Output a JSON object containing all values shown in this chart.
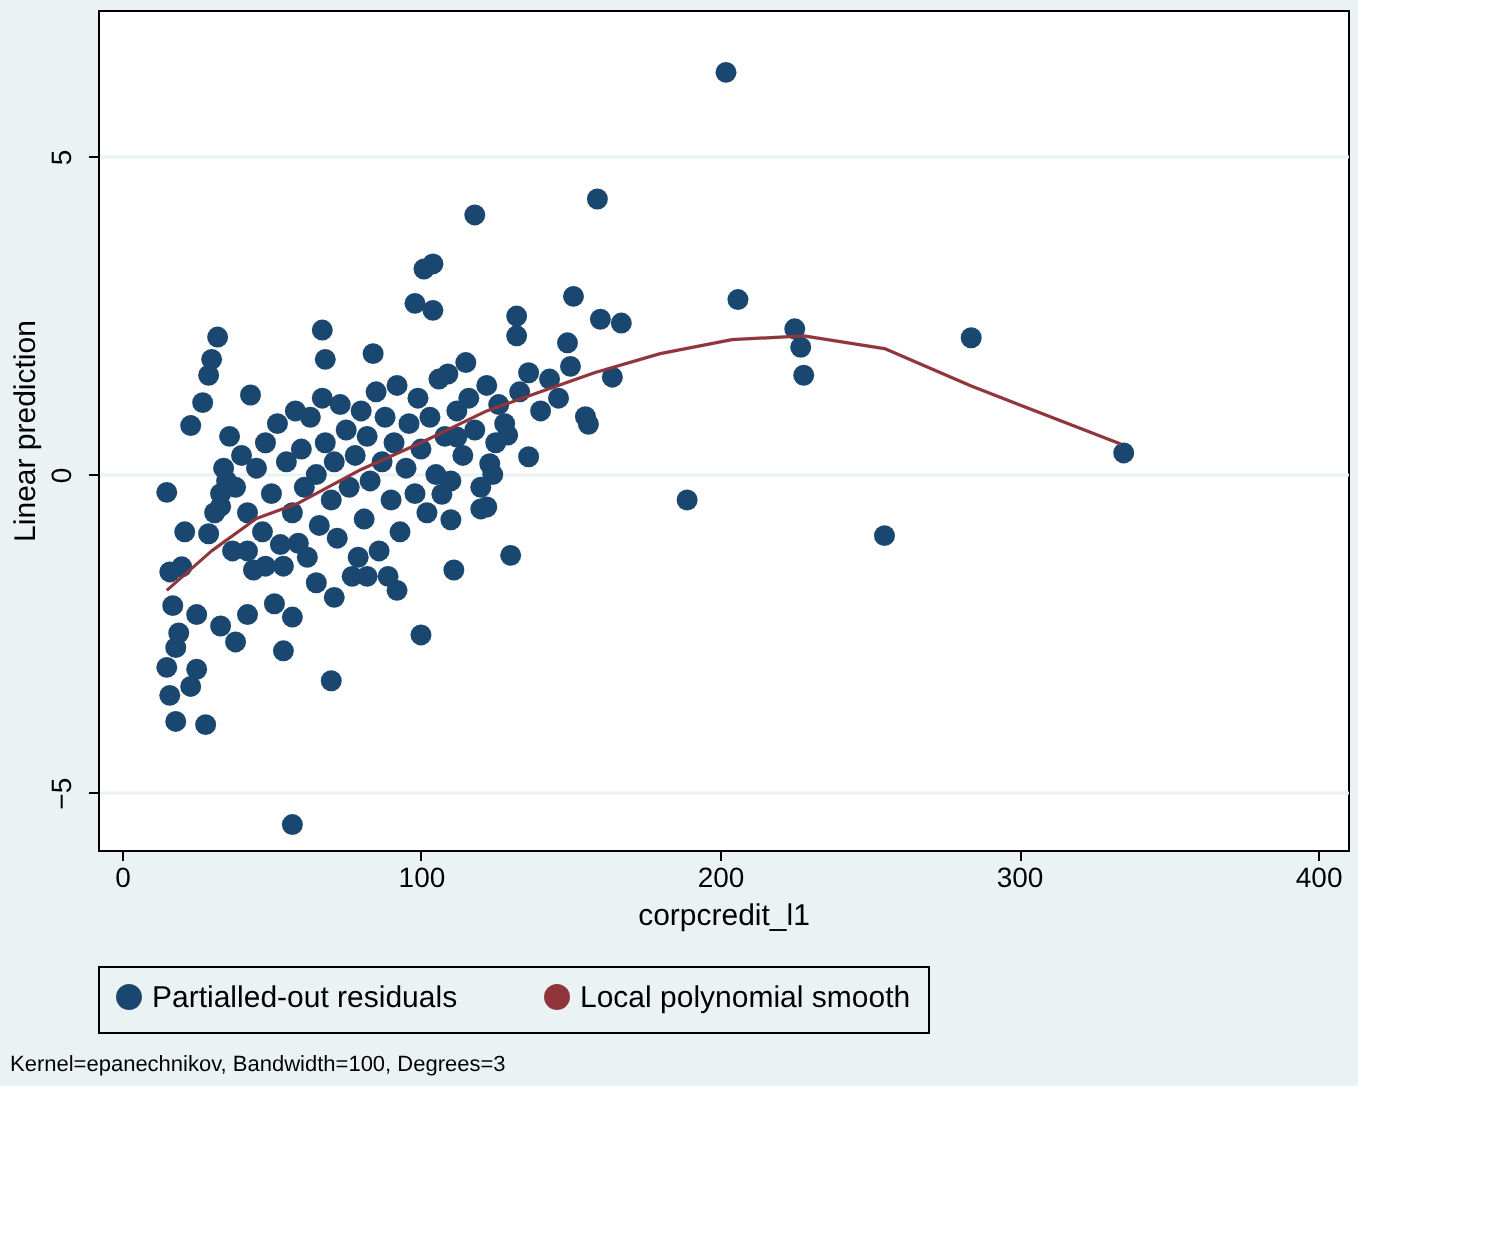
{
  "chart_data": {
    "type": "scatter",
    "xlabel": "corpcredit_l1",
    "ylabel": "Linear prediction",
    "annotations": [
      "Kernel=epanechnikov,  Bandwidth=100,  Degrees=3"
    ],
    "xlim": [
      -8,
      410
    ],
    "ylim": [
      -5.9,
      7.3
    ],
    "xticks": [
      0,
      100,
      200,
      300,
      400
    ],
    "yticks": [
      -5,
      0,
      5
    ],
    "grid": "y",
    "legend": "bottom",
    "series": [
      {
        "name": "Partialled-out residuals",
        "marker": "circle",
        "color": "#1a476f",
        "x": [
          118,
          101,
          104,
          98,
          104,
          67,
          32,
          30,
          29,
          27,
          23,
          15,
          21,
          16,
          20,
          17,
          25,
          19,
          18,
          15,
          25,
          16,
          23,
          18,
          28,
          57,
          70,
          54,
          33,
          38,
          42,
          51,
          57,
          100,
          92,
          111,
          110,
          107,
          115,
          109,
          84,
          68,
          43,
          112,
          120,
          82,
          71,
          59,
          48,
          54,
          37,
          42,
          29,
          31,
          33,
          34,
          202,
          159,
          151,
          206,
          132,
          132,
          160,
          167,
          149,
          225,
          227,
          228,
          284,
          335,
          164,
          155,
          156,
          189,
          255,
          130,
          122,
          136,
          123,
          124,
          129,
          38,
          40,
          42,
          45,
          47,
          48,
          50,
          52,
          53,
          55,
          57,
          58,
          60,
          61,
          62,
          63,
          65,
          66,
          67,
          68,
          70,
          71,
          72,
          73,
          75,
          76,
          77,
          78,
          80,
          81,
          82,
          83,
          85,
          86,
          87,
          88,
          90,
          91,
          92,
          93,
          95,
          96,
          98,
          99,
          100,
          102,
          103,
          105,
          106,
          108,
          110,
          112,
          114,
          116,
          118,
          120,
          122,
          126,
          128,
          133,
          136,
          140,
          143,
          146,
          150,
          125,
          35,
          33,
          36,
          44,
          65,
          79,
          89
        ],
        "values": [
          4.08,
          3.23,
          3.31,
          2.69,
          2.58,
          2.27,
          2.16,
          1.81,
          1.56,
          1.13,
          0.77,
          -0.28,
          -0.9,
          -1.53,
          -1.45,
          -2.06,
          -2.2,
          -2.49,
          -2.72,
          -3.03,
          -3.06,
          -3.47,
          -3.33,
          -3.88,
          -3.93,
          -5.5,
          -3.24,
          -2.77,
          -2.38,
          -2.63,
          -2.2,
          -2.03,
          -2.24,
          -2.52,
          -1.82,
          -1.5,
          -0.71,
          -0.31,
          1.76,
          1.58,
          1.9,
          1.81,
          1.25,
          0.59,
          -0.54,
          -1.6,
          -1.93,
          -1.08,
          -1.44,
          -1.44,
          -1.2,
          -1.2,
          -0.93,
          -0.6,
          -0.3,
          0.1,
          6.32,
          4.33,
          2.8,
          2.75,
          2.49,
          2.18,
          2.44,
          2.38,
          2.07,
          2.29,
          2.0,
          1.56,
          2.15,
          0.34,
          1.53,
          0.91,
          0.79,
          -0.4,
          -0.96,
          -1.27,
          -0.51,
          0.28,
          0.17,
          0.0,
          0.62,
          -0.2,
          0.3,
          -0.6,
          0.1,
          -0.9,
          0.5,
          -0.3,
          0.8,
          -1.1,
          0.2,
          -0.6,
          1.0,
          0.4,
          -0.2,
          -1.3,
          0.9,
          0.0,
          -0.8,
          1.2,
          0.5,
          -0.4,
          0.2,
          -1.0,
          1.1,
          0.7,
          -0.2,
          -1.6,
          0.3,
          1.0,
          -0.7,
          0.6,
          -0.1,
          1.3,
          -1.2,
          0.2,
          0.9,
          -0.4,
          0.5,
          1.4,
          -0.9,
          0.1,
          0.8,
          -0.3,
          1.2,
          0.4,
          -0.6,
          0.9,
          0.0,
          1.5,
          0.6,
          -0.1,
          1.0,
          0.3,
          1.2,
          0.7,
          -0.2,
          1.4,
          1.1,
          0.8,
          1.3,
          1.6,
          1.0,
          1.5,
          1.2,
          1.7,
          0.5,
          -0.1,
          -0.5,
          0.6,
          -1.5,
          -1.7,
          -1.3,
          -1.6
        ]
      },
      {
        "name": "Local polynomial smooth",
        "type": "line",
        "marker": "none",
        "color": "#90353b",
        "line_style": "solid",
        "x": [
          15,
          30,
          45,
          59,
          80,
          100,
          122,
          140,
          158,
          180,
          204,
          228,
          255,
          284,
          334
        ],
        "values": [
          -1.82,
          -1.2,
          -0.69,
          -0.45,
          0.08,
          0.5,
          1.0,
          1.3,
          1.6,
          1.9,
          2.12,
          2.18,
          1.98,
          1.39,
          0.48
        ]
      }
    ]
  }
}
